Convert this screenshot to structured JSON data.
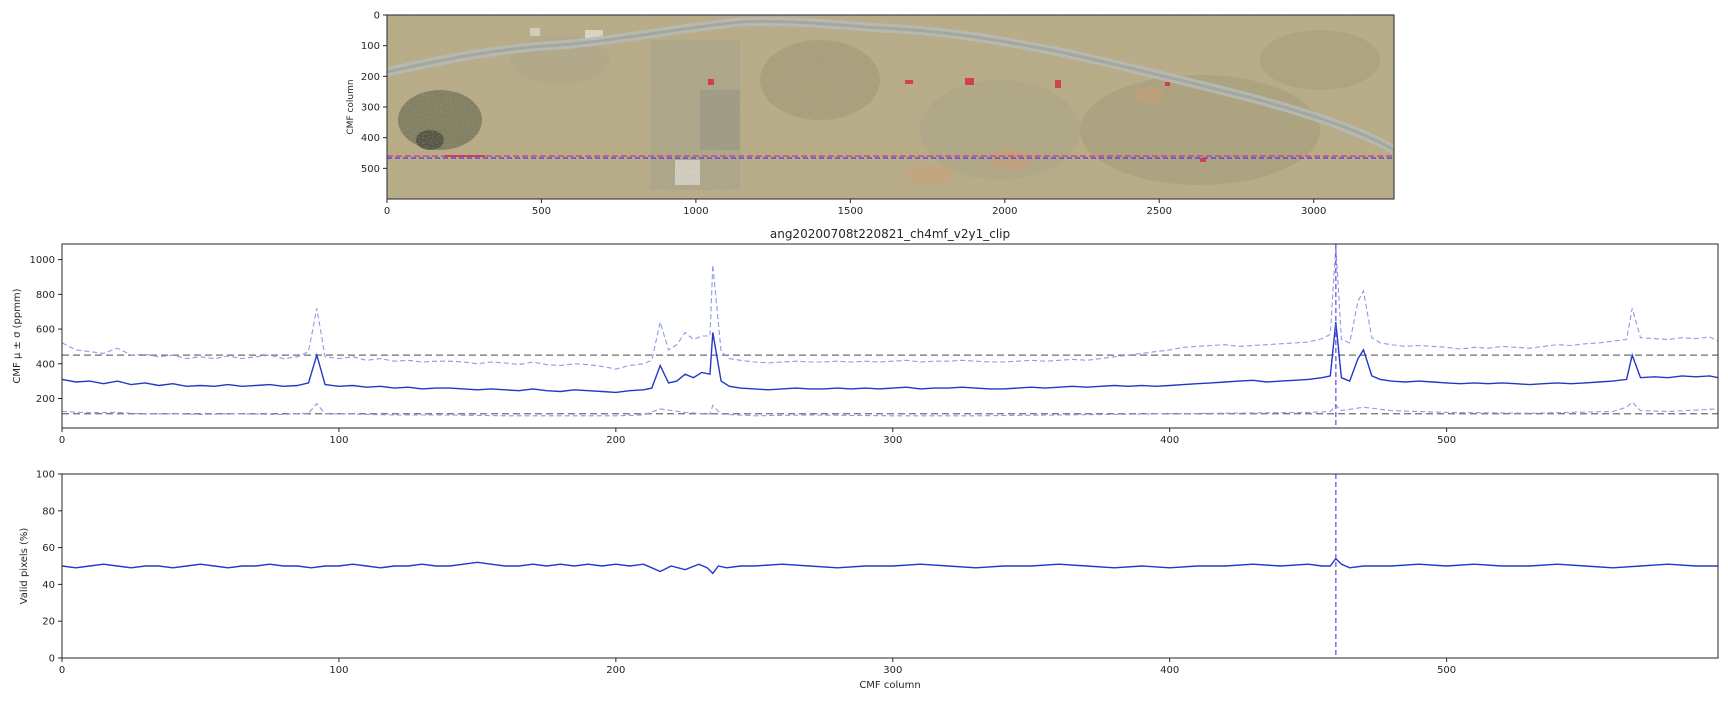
{
  "chart_data": [
    {
      "type": "image",
      "description_ref": "satellite scene with overlay",
      "ylabel": "CMF column",
      "xlim": [
        0,
        3260
      ],
      "ylim": [
        600,
        0
      ],
      "xticks": [
        0,
        500,
        1000,
        1500,
        2000,
        2500,
        3000
      ],
      "yticks": [
        0,
        100,
        200,
        300,
        400,
        500
      ],
      "selected_column": 460,
      "colors": {
        "selected_line": "#7b4fd8",
        "overlay_line": "#e0287a"
      }
    },
    {
      "type": "line",
      "title": "ang20200708t220821_ch4mf_v2y1_clip",
      "xlabel": "",
      "ylabel": "CMF μ ± σ (ppmm)",
      "xlim": [
        0,
        598
      ],
      "ylim": [
        30,
        1090
      ],
      "xticks": [
        0,
        100,
        200,
        300,
        400,
        500
      ],
      "yticks": [
        200,
        400,
        600,
        800,
        1000
      ],
      "hlines": [
        450,
        112
      ],
      "vline": 460,
      "series": [
        {
          "style": "solid",
          "color": "#2238c9",
          "x": [
            0,
            5,
            10,
            15,
            20,
            25,
            30,
            35,
            40,
            45,
            50,
            55,
            60,
            65,
            70,
            75,
            80,
            85,
            89,
            92,
            95,
            100,
            105,
            110,
            115,
            120,
            125,
            130,
            135,
            140,
            145,
            150,
            155,
            160,
            165,
            170,
            175,
            180,
            185,
            190,
            195,
            200,
            205,
            210,
            213,
            216,
            219,
            222,
            225,
            228,
            231,
            234,
            235,
            238,
            241,
            245,
            250,
            255,
            260,
            265,
            270,
            275,
            280,
            285,
            290,
            295,
            300,
            305,
            310,
            315,
            320,
            325,
            330,
            335,
            340,
            345,
            350,
            355,
            360,
            365,
            370,
            375,
            380,
            385,
            390,
            395,
            400,
            405,
            410,
            415,
            420,
            425,
            430,
            435,
            440,
            445,
            450,
            455,
            458,
            460,
            462,
            465,
            468,
            470,
            473,
            476,
            480,
            485,
            490,
            495,
            500,
            505,
            510,
            515,
            520,
            525,
            530,
            535,
            540,
            545,
            550,
            555,
            560,
            565,
            567,
            570,
            575,
            580,
            585,
            590,
            595,
            598
          ],
          "values": [
            310,
            295,
            300,
            285,
            300,
            280,
            290,
            275,
            285,
            270,
            275,
            270,
            280,
            270,
            275,
            280,
            270,
            275,
            290,
            450,
            280,
            270,
            275,
            265,
            270,
            260,
            265,
            255,
            260,
            260,
            255,
            250,
            255,
            250,
            245,
            255,
            245,
            240,
            250,
            245,
            240,
            235,
            245,
            250,
            260,
            390,
            290,
            300,
            340,
            320,
            350,
            340,
            580,
            300,
            270,
            260,
            255,
            250,
            255,
            260,
            255,
            255,
            260,
            255,
            260,
            255,
            260,
            265,
            255,
            260,
            260,
            265,
            260,
            255,
            255,
            260,
            265,
            260,
            265,
            270,
            265,
            270,
            275,
            270,
            275,
            270,
            275,
            280,
            285,
            290,
            295,
            300,
            305,
            295,
            300,
            305,
            310,
            320,
            330,
            640,
            320,
            300,
            430,
            480,
            330,
            310,
            300,
            295,
            300,
            295,
            290,
            285,
            290,
            285,
            290,
            285,
            280,
            285,
            290,
            285,
            290,
            295,
            300,
            310,
            450,
            320,
            325,
            320,
            330,
            325,
            330,
            320
          ]
        },
        {
          "style": "dashed",
          "color": "#8c9ae8",
          "x": [
            0,
            5,
            10,
            15,
            20,
            25,
            30,
            35,
            40,
            45,
            50,
            55,
            60,
            65,
            70,
            75,
            80,
            85,
            89,
            92,
            95,
            100,
            105,
            110,
            115,
            120,
            125,
            130,
            135,
            140,
            145,
            150,
            155,
            160,
            165,
            170,
            175,
            180,
            185,
            190,
            195,
            200,
            205,
            210,
            213,
            216,
            219,
            222,
            225,
            228,
            231,
            234,
            235,
            238,
            241,
            245,
            250,
            255,
            260,
            265,
            270,
            275,
            280,
            285,
            290,
            295,
            300,
            305,
            310,
            315,
            320,
            325,
            330,
            335,
            340,
            345,
            350,
            355,
            360,
            365,
            370,
            375,
            380,
            385,
            390,
            395,
            400,
            405,
            410,
            415,
            420,
            425,
            430,
            435,
            440,
            445,
            450,
            455,
            458,
            460,
            462,
            465,
            468,
            470,
            473,
            476,
            480,
            485,
            490,
            495,
            500,
            505,
            510,
            515,
            520,
            525,
            530,
            535,
            540,
            545,
            550,
            555,
            560,
            565,
            567,
            570,
            575,
            580,
            585,
            590,
            595,
            598
          ],
          "values": [
            520,
            480,
            470,
            460,
            490,
            450,
            455,
            440,
            450,
            430,
            440,
            430,
            445,
            430,
            440,
            450,
            430,
            440,
            470,
            720,
            440,
            430,
            440,
            420,
            430,
            415,
            420,
            410,
            415,
            415,
            410,
            400,
            410,
            405,
            395,
            410,
            395,
            390,
            400,
            395,
            385,
            370,
            390,
            400,
            420,
            640,
            480,
            510,
            580,
            540,
            560,
            560,
            970,
            470,
            430,
            420,
            410,
            405,
            410,
            415,
            410,
            410,
            415,
            410,
            415,
            410,
            415,
            420,
            410,
            415,
            415,
            420,
            415,
            410,
            410,
            415,
            420,
            415,
            420,
            425,
            420,
            430,
            440,
            450,
            460,
            470,
            480,
            495,
            500,
            505,
            510,
            500,
            505,
            510,
            515,
            520,
            525,
            545,
            570,
            1080,
            540,
            520,
            760,
            820,
            550,
            520,
            510,
            500,
            505,
            500,
            495,
            485,
            495,
            490,
            500,
            495,
            490,
            500,
            510,
            505,
            515,
            520,
            530,
            540,
            720,
            550,
            545,
            540,
            550,
            545,
            555,
            530
          ]
        },
        {
          "style": "dashed",
          "color": "#8c9ae8",
          "x": [
            0,
            10,
            20,
            30,
            40,
            50,
            60,
            70,
            80,
            89,
            92,
            95,
            105,
            120,
            140,
            160,
            180,
            200,
            210,
            216,
            225,
            234,
            235,
            238,
            250,
            270,
            300,
            330,
            360,
            390,
            420,
            450,
            458,
            460,
            462,
            470,
            480,
            500,
            530,
            560,
            565,
            567,
            570,
            580,
            598
          ],
          "values": [
            125,
            118,
            120,
            110,
            112,
            108,
            112,
            110,
            108,
            115,
            170,
            112,
            110,
            105,
            105,
            100,
            100,
            100,
            105,
            140,
            120,
            110,
            160,
            110,
            100,
            105,
            100,
            100,
            105,
            110,
            115,
            120,
            125,
            160,
            130,
            150,
            130,
            120,
            115,
            125,
            150,
            180,
            130,
            125,
            140
          ]
        }
      ]
    },
    {
      "type": "line",
      "xlabel": "CMF column",
      "ylabel": "Valid pixels (%)",
      "xlim": [
        0,
        598
      ],
      "ylim": [
        0,
        100
      ],
      "xticks": [
        0,
        100,
        200,
        300,
        400,
        500
      ],
      "yticks": [
        0,
        20,
        40,
        60,
        80,
        100
      ],
      "vline": 460,
      "series": [
        {
          "style": "solid",
          "color": "#2238c9",
          "x": [
            0,
            5,
            10,
            15,
            20,
            25,
            30,
            35,
            40,
            45,
            50,
            55,
            60,
            65,
            70,
            75,
            80,
            85,
            90,
            95,
            100,
            105,
            110,
            115,
            120,
            125,
            130,
            135,
            140,
            145,
            150,
            155,
            160,
            165,
            170,
            175,
            180,
            185,
            190,
            195,
            200,
            205,
            210,
            213,
            216,
            220,
            225,
            230,
            233,
            235,
            237,
            240,
            245,
            250,
            260,
            270,
            280,
            290,
            300,
            310,
            320,
            330,
            340,
            350,
            360,
            370,
            380,
            390,
            400,
            410,
            420,
            430,
            440,
            450,
            455,
            458,
            460,
            462,
            465,
            470,
            480,
            490,
            500,
            510,
            520,
            530,
            540,
            550,
            560,
            570,
            580,
            590,
            598
          ],
          "values": [
            50,
            49,
            50,
            51,
            50,
            49,
            50,
            50,
            49,
            50,
            51,
            50,
            49,
            50,
            50,
            51,
            50,
            50,
            49,
            50,
            50,
            51,
            50,
            49,
            50,
            50,
            51,
            50,
            50,
            51,
            52,
            51,
            50,
            50,
            51,
            50,
            51,
            50,
            51,
            50,
            51,
            50,
            51,
            49,
            47,
            50,
            48,
            51,
            49,
            46,
            50,
            49,
            50,
            50,
            51,
            50,
            49,
            50,
            50,
            51,
            50,
            49,
            50,
            50,
            51,
            50,
            49,
            50,
            49,
            50,
            50,
            51,
            50,
            51,
            50,
            50,
            54,
            51,
            49,
            50,
            50,
            51,
            50,
            51,
            50,
            50,
            51,
            50,
            49,
            50,
            51,
            50,
            50
          ]
        }
      ]
    }
  ]
}
